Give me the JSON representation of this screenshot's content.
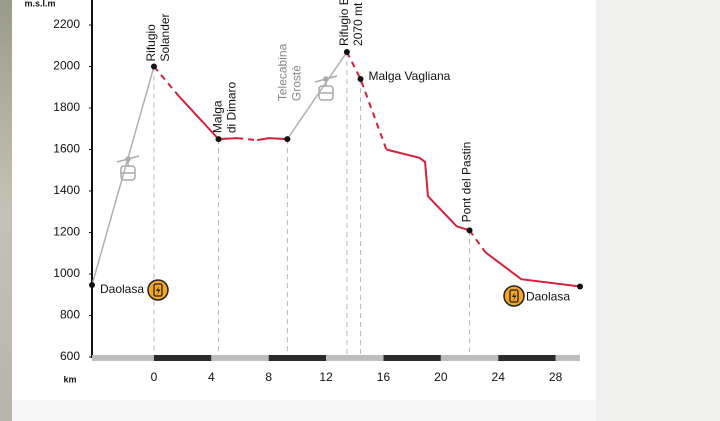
{
  "chart_data": {
    "type": "elevation-profile",
    "y_label": "m.s.l.m",
    "x_label": "km",
    "xlim": [
      -4.32,
      29.7
    ],
    "ylim": [
      600,
      2200
    ],
    "xticks": [
      0,
      4,
      8,
      12,
      16,
      20,
      24,
      28
    ],
    "yticks": [
      600,
      800,
      1000,
      1200,
      1400,
      1600,
      1800,
      2000,
      2200
    ],
    "segments": [
      {
        "style": "lift",
        "color": "#b0b0b0",
        "x": [
          -4.32,
          0
        ],
        "values": [
          947,
          2000
        ]
      },
      {
        "style": "dashed",
        "color": "#d6203a",
        "x": [
          0,
          1.7
        ],
        "values": [
          2000,
          1860
        ]
      },
      {
        "style": "solid",
        "color": "#d6203a",
        "x": [
          1.7,
          4.5,
          5.8
        ],
        "values": [
          1860,
          1650,
          1655
        ]
      },
      {
        "style": "dashed",
        "color": "#d6203a",
        "x": [
          5.8,
          7.2
        ],
        "values": [
          1655,
          1645
        ]
      },
      {
        "style": "solid",
        "color": "#d6203a",
        "x": [
          7.2,
          8.0,
          9.3
        ],
        "values": [
          1645,
          1655,
          1650
        ]
      },
      {
        "style": "lift",
        "color": "#b0b0b0",
        "x": [
          9.3,
          13.45
        ],
        "values": [
          1650,
          2070
        ]
      },
      {
        "style": "dashed",
        "color": "#d6203a",
        "x": [
          13.45,
          14.4,
          16.2
        ],
        "values": [
          2070,
          1940,
          1600
        ]
      },
      {
        "style": "solid",
        "color": "#d6203a",
        "x": [
          16.2,
          18.5,
          18.9,
          19.1,
          21.1,
          22.0
        ],
        "values": [
          1600,
          1560,
          1540,
          1375,
          1230,
          1210
        ]
      },
      {
        "style": "dashed",
        "color": "#d6203a",
        "x": [
          22.0,
          23.1
        ],
        "values": [
          1210,
          1105
        ]
      },
      {
        "style": "solid",
        "color": "#d6203a",
        "x": [
          23.1,
          25.6,
          29.7
        ],
        "values": [
          1105,
          975,
          940
        ]
      }
    ],
    "waypoints": [
      {
        "label": [
          "Daolasa"
        ],
        "x": -4.32,
        "value": 947
      },
      {
        "label": [
          "Rifugio",
          "Solander"
        ],
        "x": 0,
        "value": 2000
      },
      {
        "label": [
          "Malga",
          "di Dimaro"
        ],
        "x": 4.5,
        "value": 1650
      },
      {
        "label": [
          "Telecabina",
          "Grostè"
        ],
        "x": 9.3,
        "value": 1650
      },
      {
        "label": [
          "Rifugio B",
          "2070 mt"
        ],
        "x": 13.45,
        "value": 2070
      },
      {
        "label": [
          "Malga Vagliana"
        ],
        "x": 14.4,
        "value": 1940
      },
      {
        "label": [
          "Pont del Pastin"
        ],
        "x": 22.0,
        "value": 1210
      },
      {
        "label": [
          "Daolasa"
        ],
        "x": 29.7,
        "value": 940
      }
    ]
  }
}
